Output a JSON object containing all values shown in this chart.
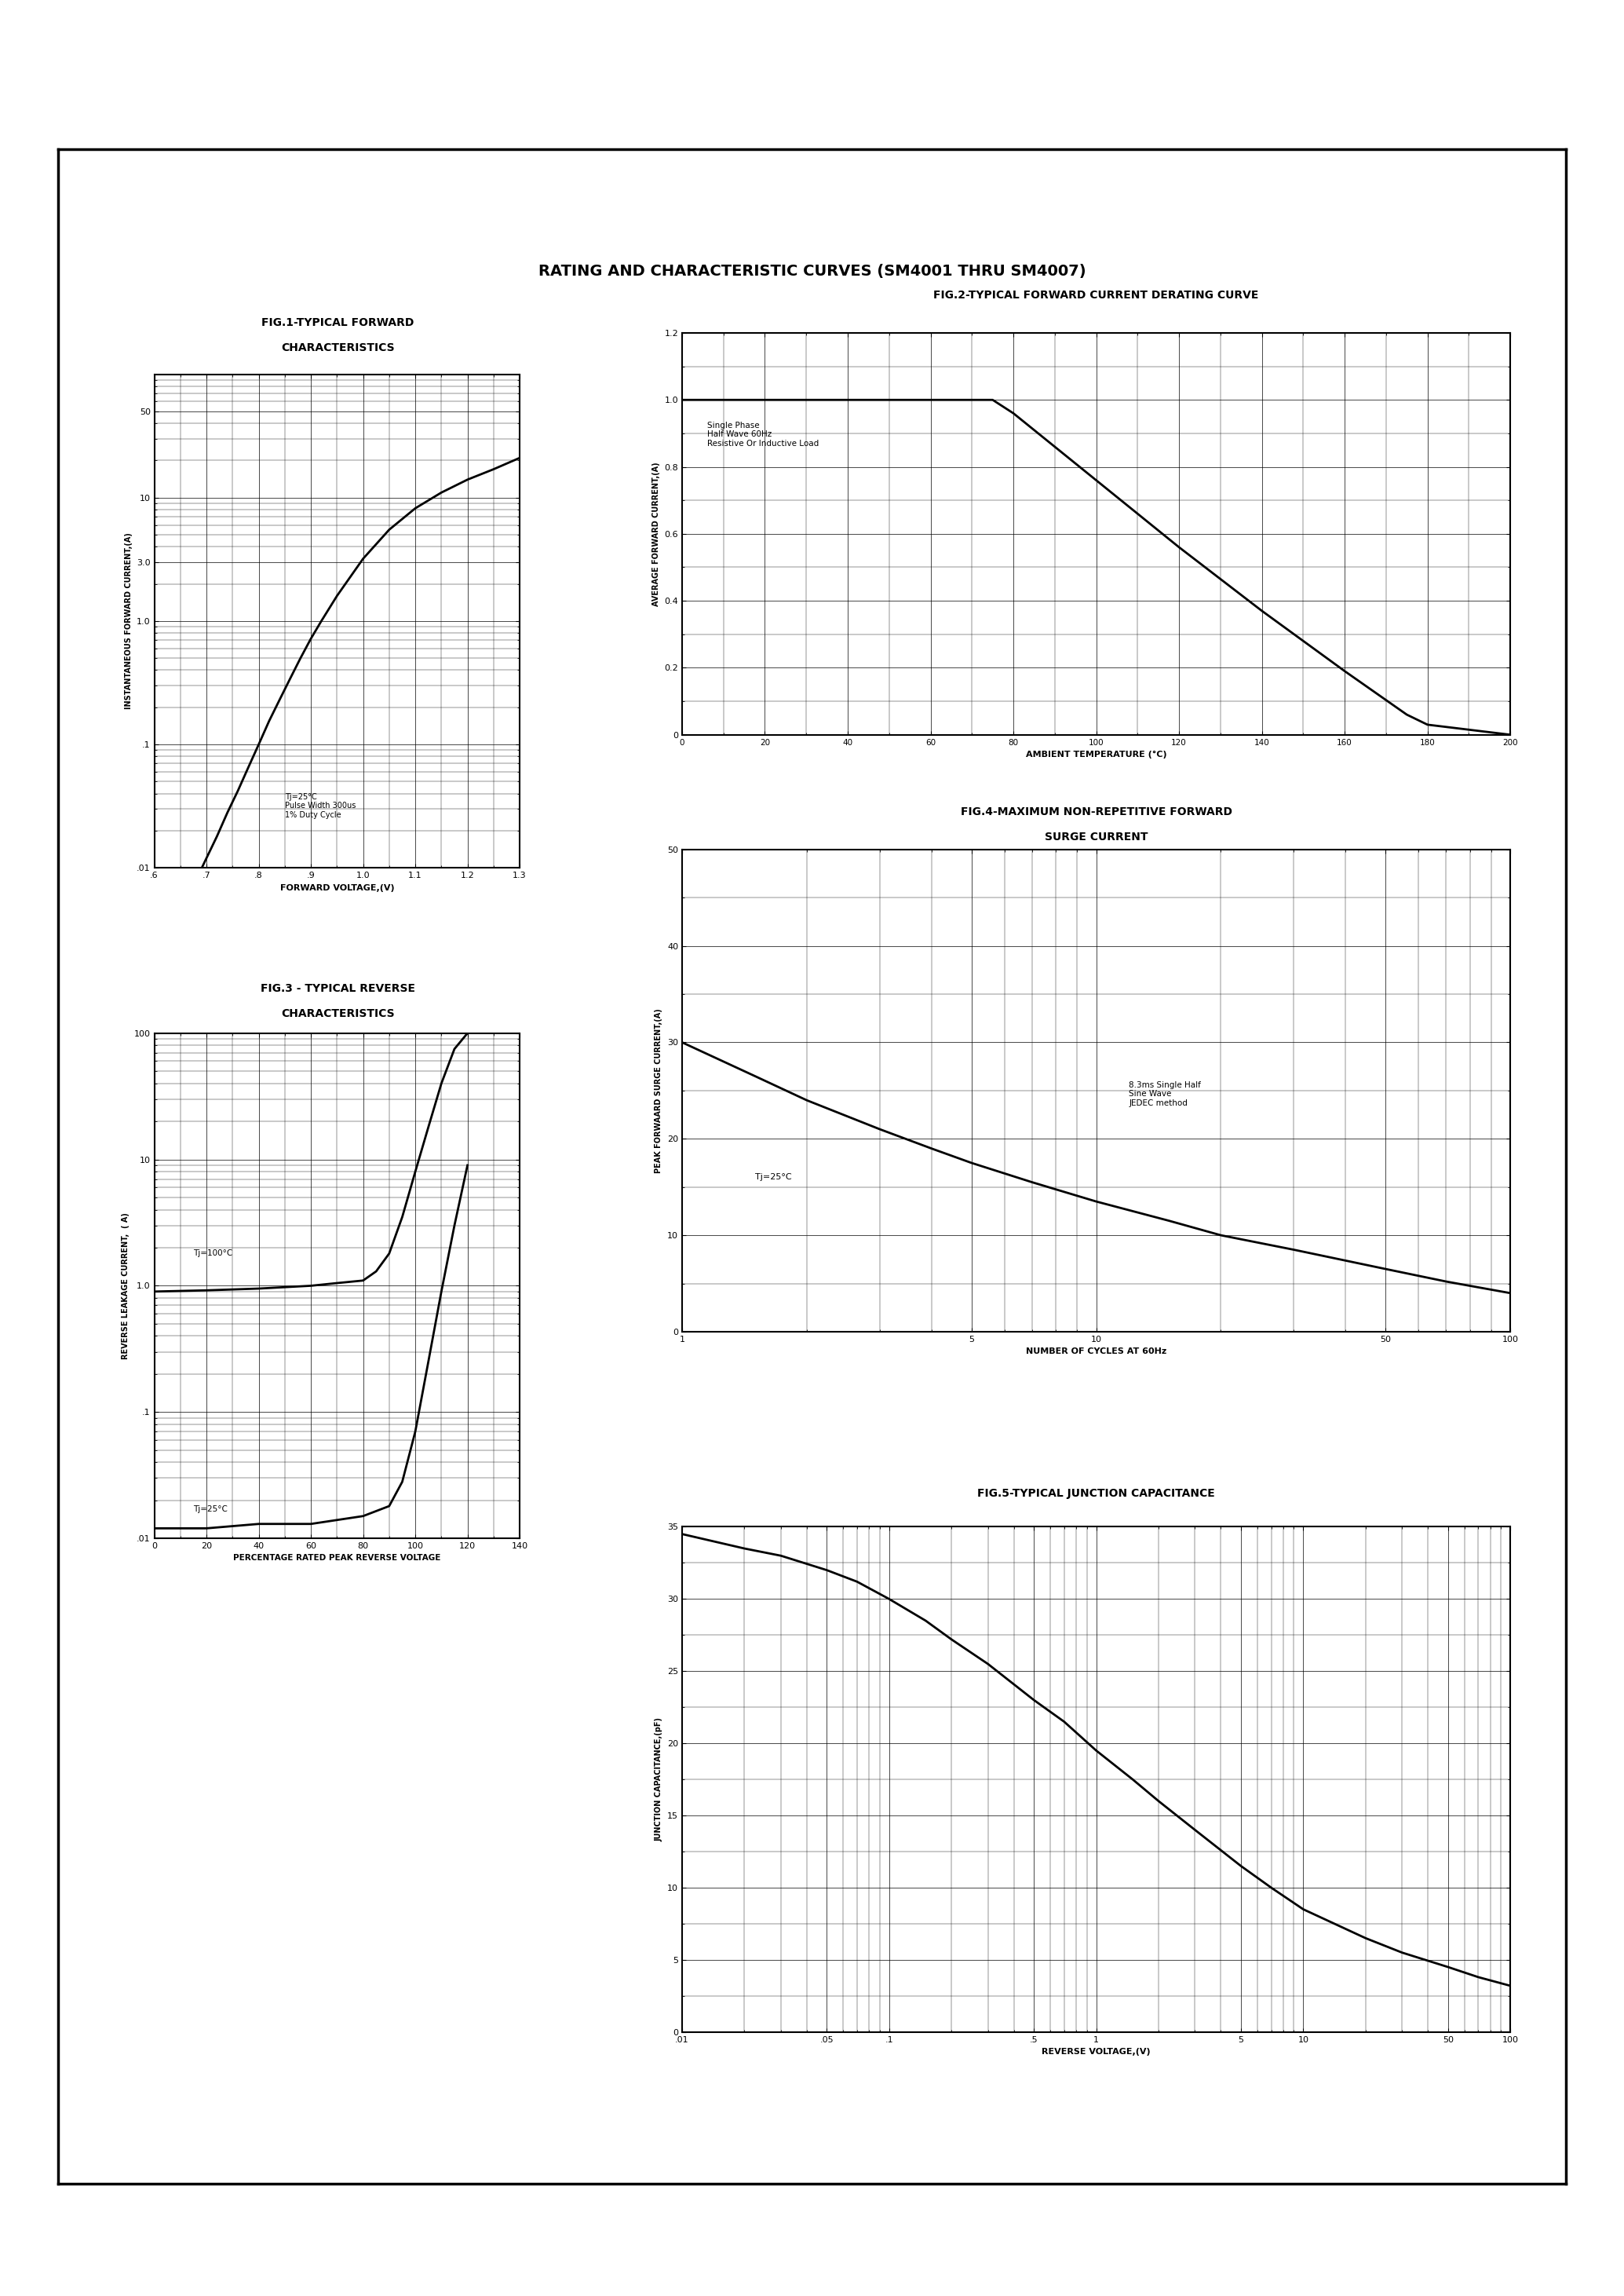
{
  "title": "RATING AND CHARACTERISTIC CURVES (SM4001 THRU SM4007)",
  "fig1_title1": "FIG.1-TYPICAL FORWARD",
  "fig1_title2": "CHARACTERISTICS",
  "fig2_title": "FIG.2-TYPICAL FORWARD CURRENT DERATING CURVE",
  "fig3_title1": "FIG.3 - TYPICAL REVERSE",
  "fig3_title2": "CHARACTERISTICS",
  "fig4_title1": "FIG.4-MAXIMUM NON-REPETITIVE FORWARD",
  "fig4_title2": "SURGE CURRENT",
  "fig5_title": "FIG.5-TYPICAL JUNCTION CAPACITANCE",
  "fig1_xlabel": "FORWARD VOLTAGE,(V)",
  "fig1_ylabel": "INSTANTANEOUS FORWARD CURRENT,(A)",
  "fig2_xlabel": "AMBIENT TEMPERATURE (°C)",
  "fig2_ylabel": "AVERAGE FORWARD CURRENT,(A)",
  "fig3_xlabel": "PERCENTAGE RATED PEAK REVERSE VOLTAGE",
  "fig3_ylabel": "REVERSE LEAKAGE CURRENT,  ( A)",
  "fig4_xlabel": "NUMBER OF CYCLES AT 60Hz",
  "fig4_ylabel": "PEAK FORWAARD SURGE CURRENT,(A)",
  "fig5_xlabel": "REVERSE VOLTAGE,(V)",
  "fig5_ylabel": "JUNCTION CAPACITANCE,(pF)",
  "fig1_annotation": "Tj=25°C\nPulse Width 300us\n1% Duty Cycle",
  "fig2_annotation": "Single Phase\nHalf Wave 60Hz\nResistive Or Inductive Load",
  "fig3_annotation_100": "Tj=100°C",
  "fig3_annotation_25": "Tj=25°C",
  "fig4_annotation": "Tj=25°C",
  "fig4_annotation2": "8.3ms Single Half\nSine Wave\nJEDEC method",
  "bg_color": "#ffffff",
  "line_color": "#000000",
  "border_color": "#000000",
  "page_width": 20.69,
  "page_height": 29.24,
  "page_dpi": 100
}
